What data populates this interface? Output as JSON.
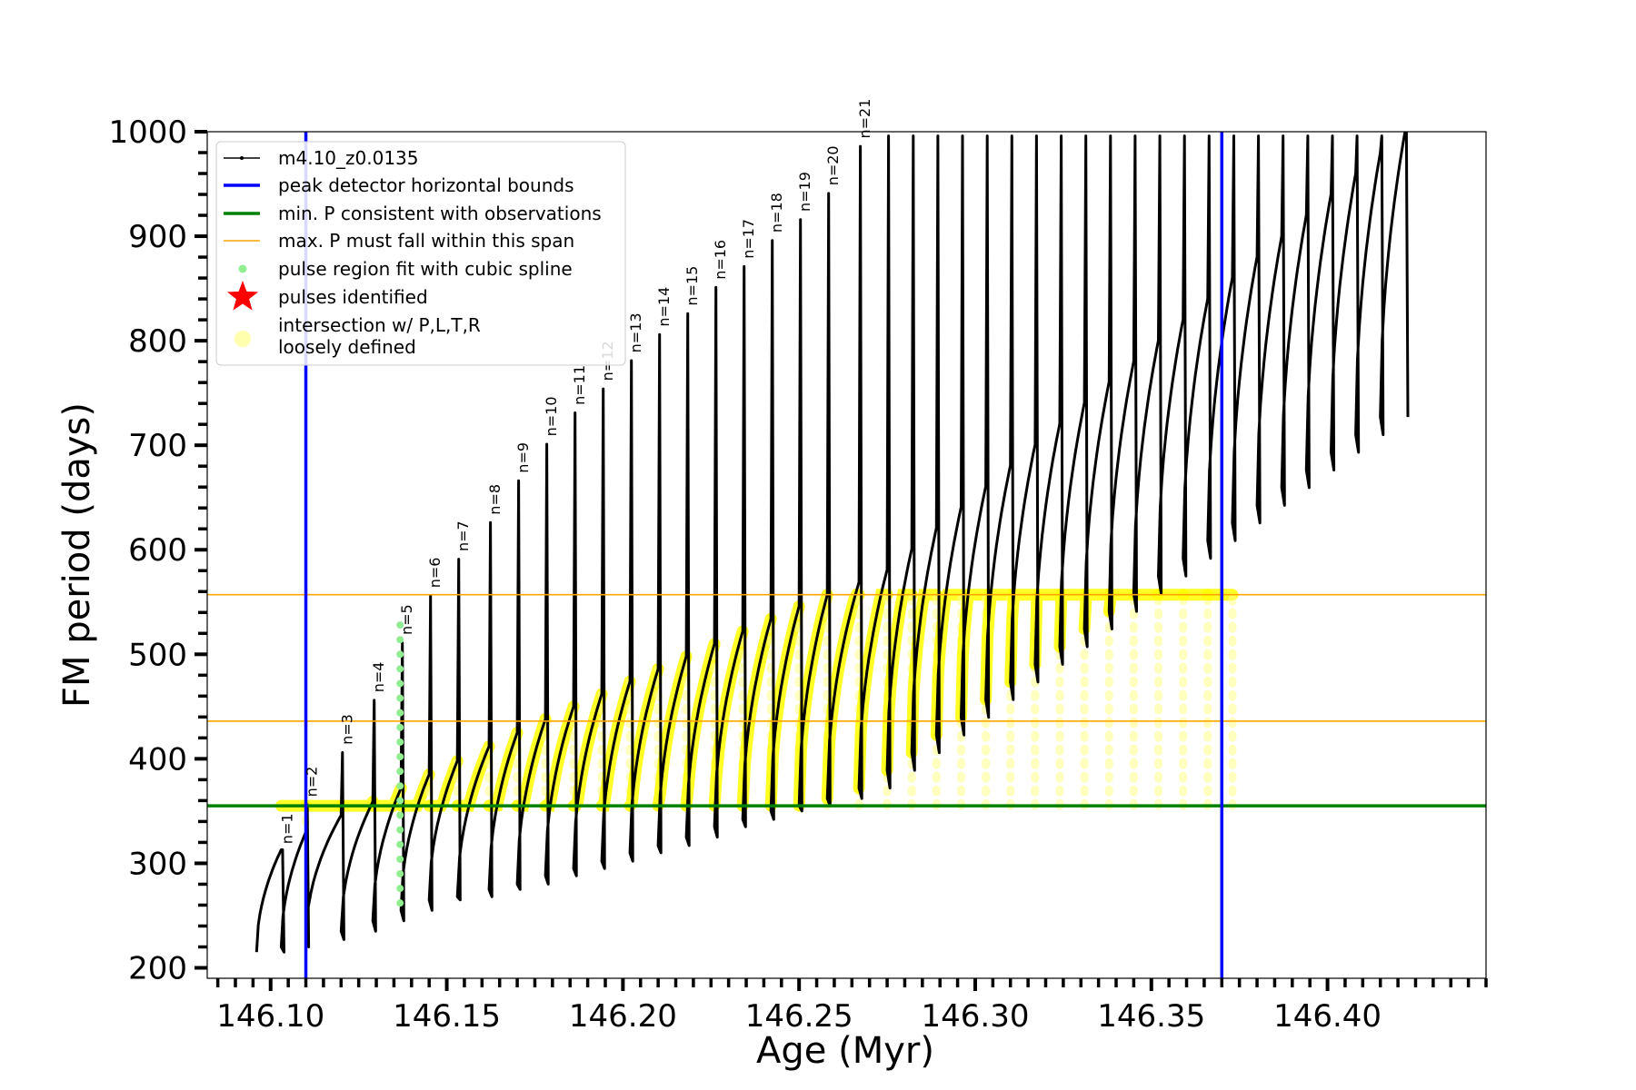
{
  "chart_data": {
    "type": "line",
    "title": "",
    "xlabel": "Age (Myr)",
    "ylabel": "FM period (days)",
    "xlim": [
      146.082,
      146.445
    ],
    "ylim": [
      190,
      1000
    ],
    "xticks": [
      146.1,
      146.15,
      146.2,
      146.25,
      146.3,
      146.35,
      146.4
    ],
    "xtick_labels": [
      "146.10",
      "146.15",
      "146.20",
      "146.25",
      "146.30",
      "146.35",
      "146.40"
    ],
    "yticks": [
      200,
      300,
      400,
      500,
      600,
      700,
      800,
      900,
      1000
    ],
    "ytick_labels": [
      "200",
      "300",
      "400",
      "500",
      "600",
      "700",
      "800",
      "900",
      "1000"
    ],
    "legend_position": "top-left",
    "legend": [
      {
        "label": "m4.10_z0.0135",
        "style": "line-dot",
        "color": "#000000"
      },
      {
        "label": "peak detector horizontal bounds",
        "style": "line-thick",
        "color": "#0000ff"
      },
      {
        "label": "min. P consistent with observations",
        "style": "line-thick",
        "color": "#008000"
      },
      {
        "label": "max. P must fall within this span",
        "style": "line-thin",
        "color": "#ffa500"
      },
      {
        "label": "pulse region fit with cubic spline",
        "style": "dot",
        "color": "#90ee90"
      },
      {
        "label": "pulses identified",
        "style": "star",
        "color": "#ff0000"
      },
      {
        "label": "intersection w/ P,L,T,R",
        "label2": "loosely defined",
        "style": "blob",
        "color": "#ffffa0"
      }
    ],
    "vlines": [
      146.11,
      146.37
    ],
    "hline_min": 355,
    "hline_span": [
      436,
      557
    ],
    "pulses": [
      {
        "n": "n=1",
        "age": 146.103,
        "peak": 313,
        "trough": 215,
        "label_y": 315
      },
      {
        "n": "n=2",
        "age": 146.11,
        "peak": 330,
        "trough": 220,
        "label_y": 360
      },
      {
        "n": "n=3",
        "age": 146.12,
        "peak": 346,
        "trough": 227,
        "label_y": 410
      },
      {
        "n": "n=4",
        "age": 146.129,
        "peak": 359,
        "trough": 235,
        "label_y": 460
      },
      {
        "n": "n=5",
        "age": 146.137,
        "peak": 372,
        "trough": 245,
        "label_y": 515
      },
      {
        "n": "n=6",
        "age": 146.145,
        "peak": 385,
        "trough": 255,
        "label_y": 560
      },
      {
        "n": "n=7",
        "age": 146.153,
        "peak": 398,
        "trough": 265,
        "label_y": 595
      },
      {
        "n": "n=8",
        "age": 146.162,
        "peak": 412,
        "trough": 268,
        "label_y": 630
      },
      {
        "n": "n=9",
        "age": 146.17,
        "peak": 425,
        "trough": 275,
        "label_y": 670
      },
      {
        "n": "n=10",
        "age": 146.178,
        "peak": 438,
        "trough": 280,
        "label_y": 705
      },
      {
        "n": "n=11",
        "age": 146.186,
        "peak": 450,
        "trough": 288,
        "label_y": 735
      },
      {
        "n": "n=12",
        "age": 146.194,
        "peak": 462,
        "trough": 295,
        "label_y": 758
      },
      {
        "n": "n=13",
        "age": 146.202,
        "peak": 474,
        "trough": 302,
        "label_y": 785
      },
      {
        "n": "n=14",
        "age": 146.21,
        "peak": 486,
        "trough": 310,
        "label_y": 810
      },
      {
        "n": "n=15",
        "age": 146.218,
        "peak": 498,
        "trough": 317,
        "label_y": 830
      },
      {
        "n": "n=16",
        "age": 146.226,
        "peak": 510,
        "trough": 325,
        "label_y": 855
      },
      {
        "n": "n=17",
        "age": 146.234,
        "peak": 522,
        "trough": 335,
        "label_y": 875
      },
      {
        "n": "n=18",
        "age": 146.242,
        "peak": 534,
        "trough": 342,
        "label_y": 900
      },
      {
        "n": "n=19",
        "age": 146.25,
        "peak": 546,
        "trough": 350,
        "label_y": 920
      },
      {
        "n": "n=20",
        "age": 146.258,
        "peak": 557,
        "trough": 355,
        "label_y": 945
      },
      {
        "n": "n=21",
        "age": 146.267,
        "peak": 569,
        "trough": 362,
        "label_y": 990
      }
    ],
    "pulses_continued": {
      "age_start": 146.275,
      "age_end": 146.422,
      "count": 22,
      "peak_start": 581,
      "peak_end": 1000,
      "trough_start": 372,
      "trough_end": 727
    },
    "spline_fit_pulse": {
      "age": 146.137,
      "low": 262,
      "high": 535
    },
    "intersection_region": {
      "age_start": 146.11,
      "age_end": 146.37,
      "p_min": 355,
      "p_max": 557
    }
  }
}
